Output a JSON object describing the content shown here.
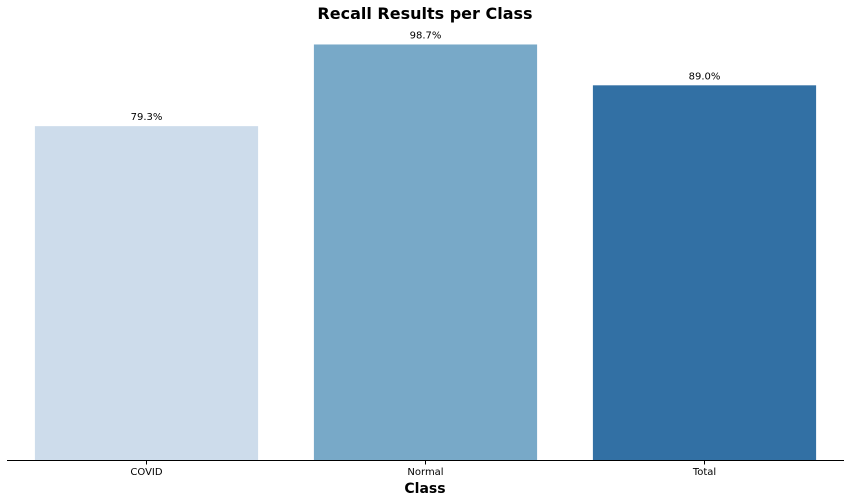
{
  "chart_data": {
    "type": "bar",
    "title": "Recall Results per Class",
    "xlabel": "Class",
    "ylabel": "",
    "categories": [
      "COVID",
      "Normal",
      "Total"
    ],
    "values": [
      79.3,
      98.7,
      89.0
    ],
    "data_labels": [
      "79.3%",
      "98.7%",
      "89.0%"
    ],
    "ylim": [
      0,
      100
    ],
    "colors": [
      "#cddceb",
      "#78a9c8",
      "#3270a4"
    ],
    "grid": false,
    "legend": "none"
  }
}
